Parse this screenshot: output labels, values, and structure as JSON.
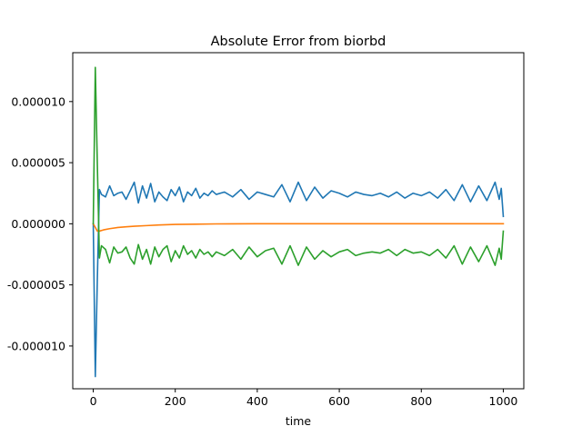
{
  "chart_data": {
    "type": "line",
    "title": "Absolute Error from biorbd",
    "xlabel": "time",
    "ylabel": "",
    "xlim": [
      -50,
      1050
    ],
    "ylim": [
      -1.35e-05,
      1.4e-05
    ],
    "xticks": [
      0,
      200,
      400,
      600,
      800,
      1000
    ],
    "xtick_labels": [
      "0",
      "200",
      "400",
      "600",
      "800",
      "1000"
    ],
    "yticks": [
      -1e-05,
      -5e-06,
      0,
      5e-06,
      1e-05
    ],
    "ytick_labels": [
      "-0.000010",
      "-0.000005",
      "0.000000",
      "0.000005",
      "0.000010"
    ],
    "grid": false,
    "legend": "none",
    "colors": [
      "#1f77b4",
      "#ff7f0e",
      "#2ca02c"
    ],
    "series": [
      {
        "x": [
          0,
          5,
          10,
          15,
          20,
          30,
          40,
          50,
          60,
          70,
          80,
          90,
          100,
          110,
          120,
          130,
          140,
          150,
          160,
          170,
          180,
          190,
          200,
          210,
          220,
          230,
          240,
          250,
          260,
          270,
          280,
          290,
          300,
          320,
          340,
          360,
          380,
          400,
          420,
          440,
          460,
          480,
          500,
          520,
          540,
          560,
          580,
          600,
          620,
          640,
          660,
          680,
          700,
          720,
          740,
          760,
          780,
          800,
          820,
          840,
          860,
          880,
          900,
          920,
          940,
          960,
          980,
          990,
          995,
          1000
        ],
        "y": [
          0.0,
          -1.25e-05,
          -4.5e-06,
          2.8e-06,
          2.4e-06,
          2.2e-06,
          3.1e-06,
          2.3e-06,
          2.5e-06,
          2.6e-06,
          2e-06,
          2.7e-06,
          3.4e-06,
          1.7e-06,
          3.1e-06,
          2.1e-06,
          3.3e-06,
          1.8e-06,
          2.6e-06,
          2.2e-06,
          1.9e-06,
          2.8e-06,
          2.3e-06,
          3e-06,
          1.8e-06,
          2.6e-06,
          2.3e-06,
          2.9e-06,
          2.1e-06,
          2.5e-06,
          2.3e-06,
          2.7e-06,
          2.4e-06,
          2.6e-06,
          2.2e-06,
          2.8e-06,
          2e-06,
          2.6e-06,
          2.4e-06,
          2.2e-06,
          3.2e-06,
          1.8e-06,
          3.4e-06,
          1.9e-06,
          3e-06,
          2.1e-06,
          2.7e-06,
          2.5e-06,
          2.2e-06,
          2.6e-06,
          2.4e-06,
          2.3e-06,
          2.5e-06,
          2.2e-06,
          2.6e-06,
          2.1e-06,
          2.5e-06,
          2.3e-06,
          2.6e-06,
          2.1e-06,
          2.8e-06,
          1.9e-06,
          3.2e-06,
          1.8e-06,
          3.1e-06,
          1.9e-06,
          3.4e-06,
          2e-06,
          2.9e-06,
          6e-07
        ]
      },
      {
        "x": [
          0,
          5,
          10,
          15,
          25,
          40,
          60,
          80,
          100,
          130,
          160,
          200,
          250,
          300,
          400,
          500,
          600,
          700,
          800,
          900,
          1000
        ],
        "y": [
          0.0,
          -3e-07,
          -6e-07,
          -6e-07,
          -5e-07,
          -4e-07,
          -3e-07,
          -2.5e-07,
          -2e-07,
          -1.5e-07,
          -1e-07,
          -5e-08,
          -3e-08,
          -1e-08,
          0.0,
          0.0,
          0.0,
          0.0,
          0.0,
          0.0,
          0.0
        ]
      },
      {
        "x": [
          0,
          5,
          10,
          15,
          20,
          30,
          40,
          50,
          60,
          70,
          80,
          90,
          100,
          110,
          120,
          130,
          140,
          150,
          160,
          170,
          180,
          190,
          200,
          210,
          220,
          230,
          240,
          250,
          260,
          270,
          280,
          290,
          300,
          320,
          340,
          360,
          380,
          400,
          420,
          440,
          460,
          480,
          500,
          520,
          540,
          560,
          580,
          600,
          620,
          640,
          660,
          680,
          700,
          720,
          740,
          760,
          780,
          800,
          820,
          840,
          860,
          880,
          900,
          920,
          940,
          960,
          980,
          990,
          995,
          1000
        ],
        "y": [
          0.0,
          1.28e-05,
          4.8e-06,
          -2.8e-06,
          -1.8e-06,
          -2.1e-06,
          -3.2e-06,
          -1.9e-06,
          -2.4e-06,
          -2.3e-06,
          -1.9e-06,
          -2.8e-06,
          -3.3e-06,
          -1.7e-06,
          -2.9e-06,
          -2.1e-06,
          -3.3e-06,
          -1.9e-06,
          -2.7e-06,
          -2.1e-06,
          -1.8e-06,
          -3.1e-06,
          -2.2e-06,
          -2.8e-06,
          -1.8e-06,
          -2.5e-06,
          -2.2e-06,
          -2.8e-06,
          -2.1e-06,
          -2.5e-06,
          -2.3e-06,
          -2.7e-06,
          -2.3e-06,
          -2.6e-06,
          -2.1e-06,
          -2.9e-06,
          -1.9e-06,
          -2.7e-06,
          -2.2e-06,
          -2e-06,
          -3.3e-06,
          -1.8e-06,
          -3.4e-06,
          -1.9e-06,
          -2.9e-06,
          -2.2e-06,
          -2.7e-06,
          -2.3e-06,
          -2.1e-06,
          -2.6e-06,
          -2.4e-06,
          -2.3e-06,
          -2.4e-06,
          -2.1e-06,
          -2.6e-06,
          -2.1e-06,
          -2.4e-06,
          -2.3e-06,
          -2.6e-06,
          -2.1e-06,
          -2.8e-06,
          -1.8e-06,
          -3.3e-06,
          -1.9e-06,
          -3.1e-06,
          -1.8e-06,
          -3.4e-06,
          -2e-06,
          -2.9e-06,
          -6e-07
        ]
      }
    ]
  }
}
